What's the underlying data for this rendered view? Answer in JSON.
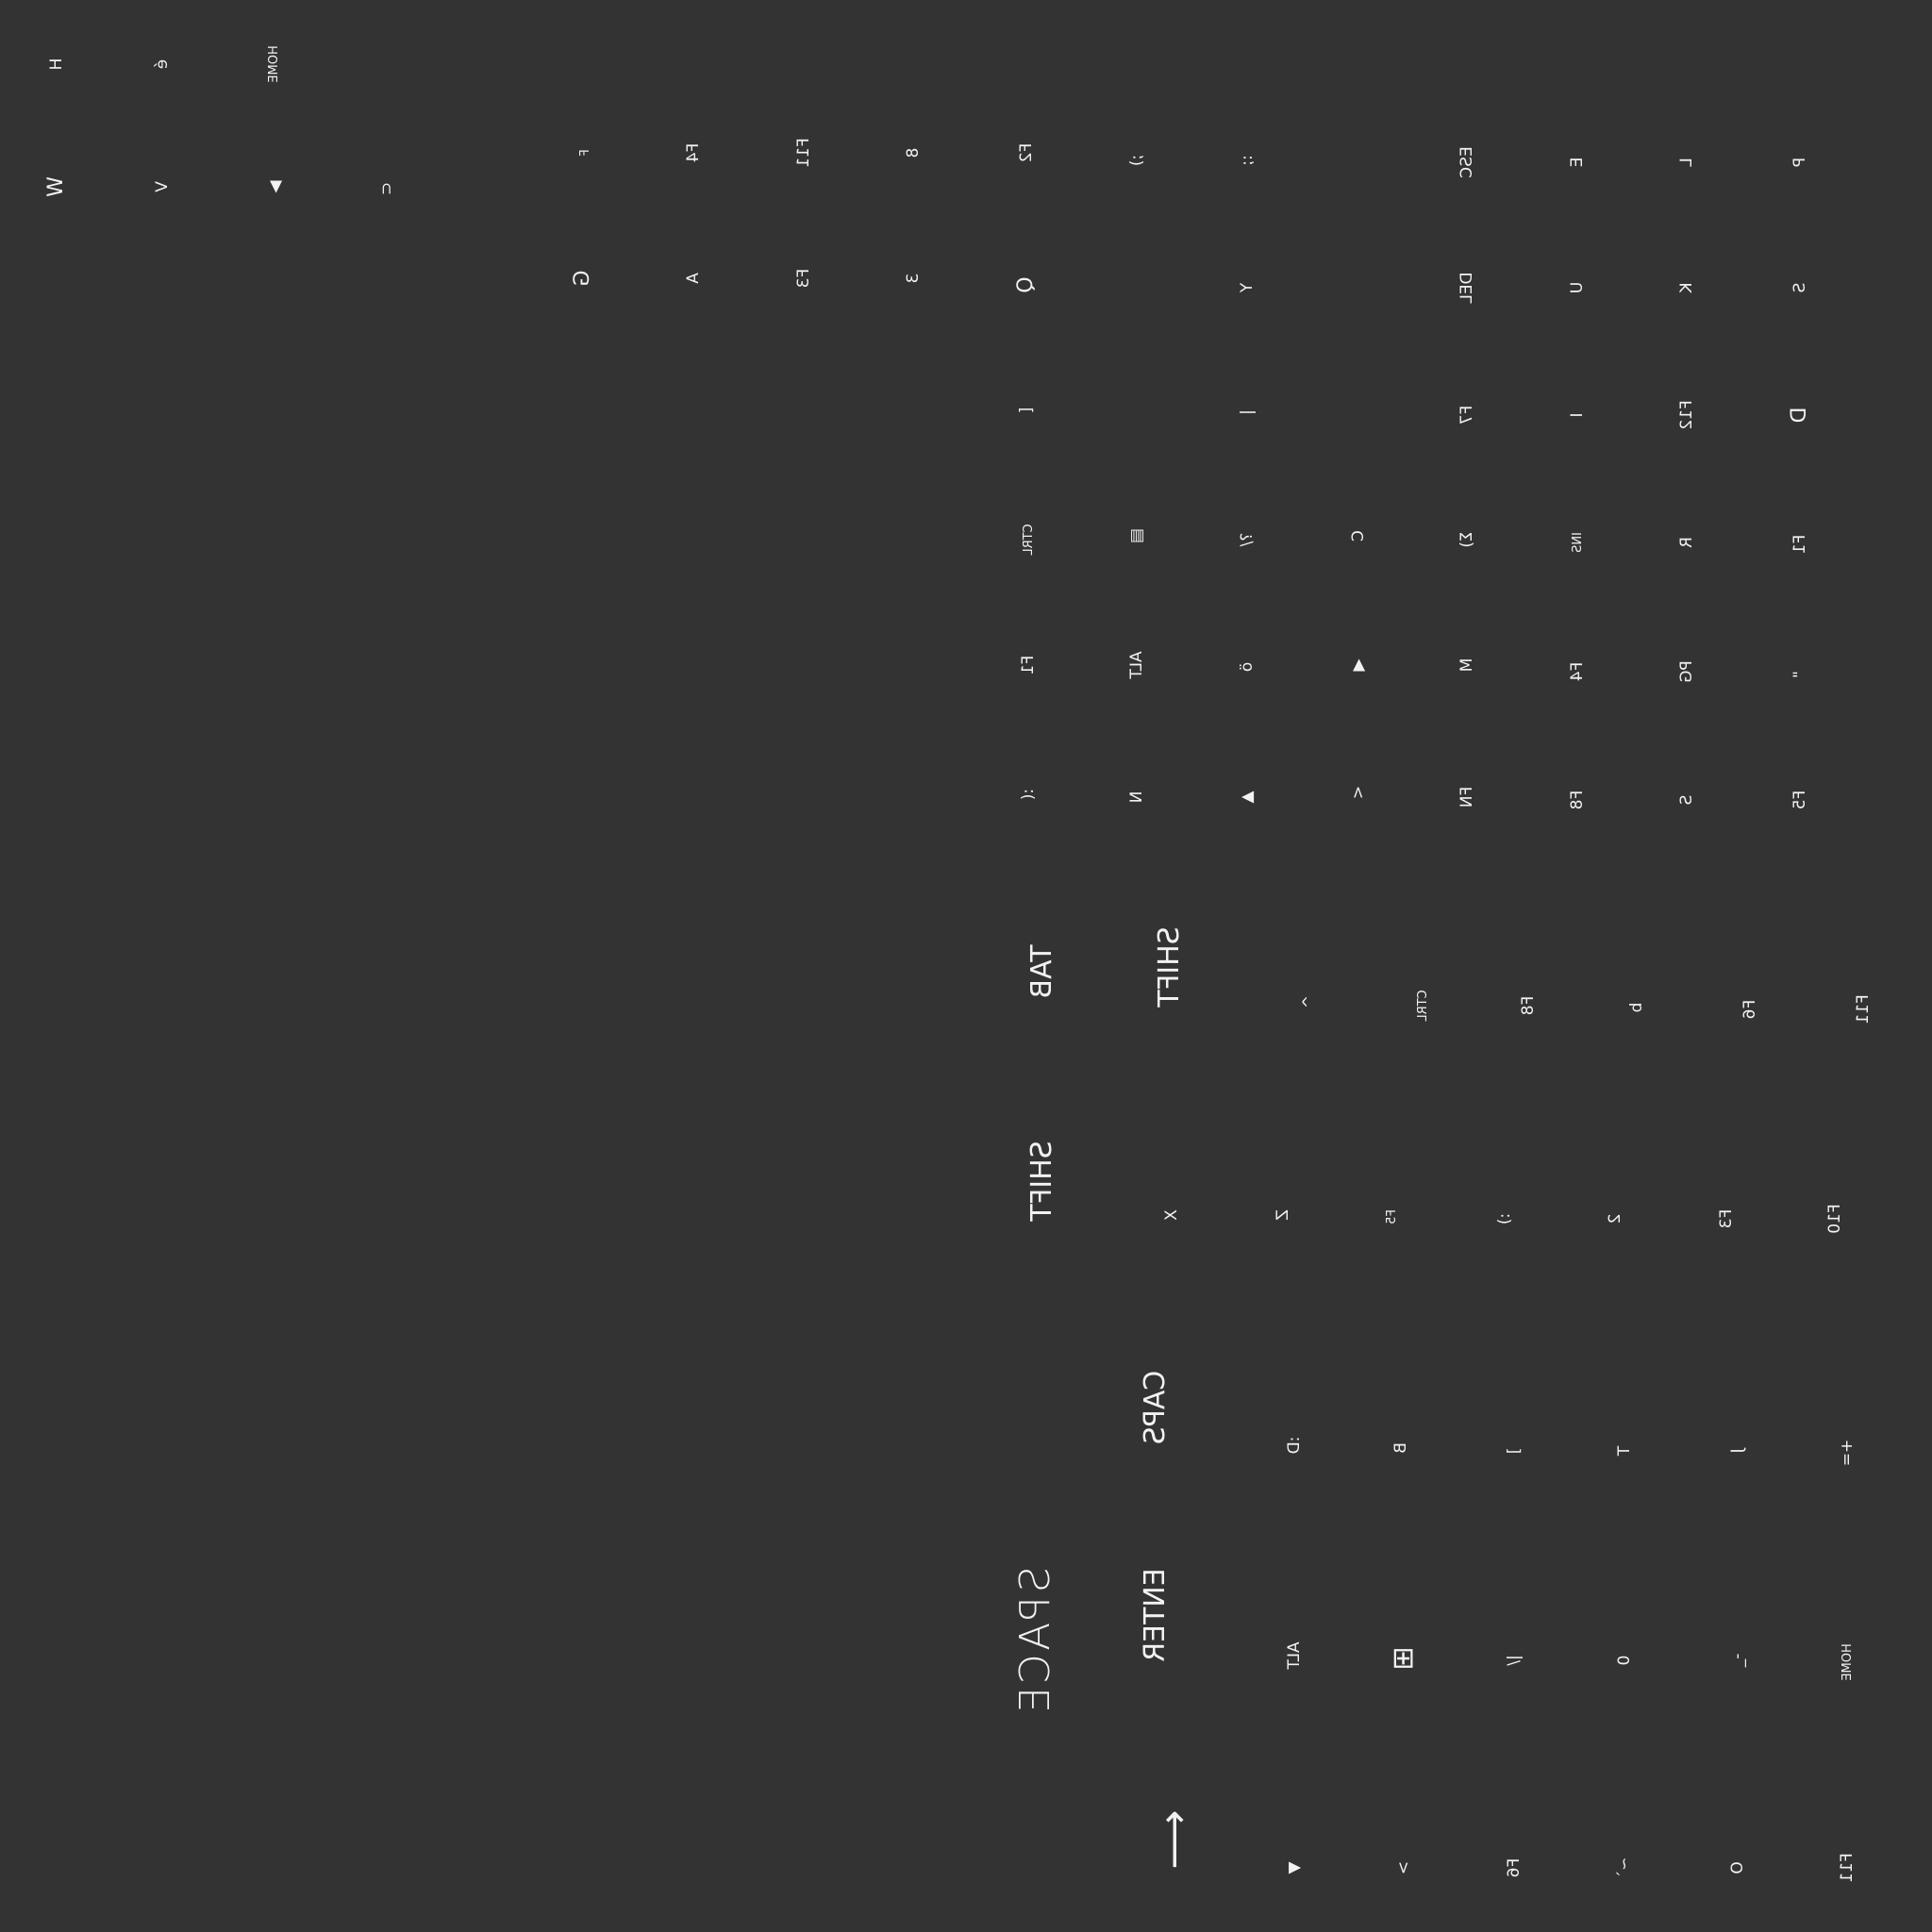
{
  "colors": {
    "background": "#333333",
    "key_text": "#f2f2f2"
  },
  "keyboard": {
    "top_left_group": [
      {
        "name": "key-h",
        "label": "H"
      },
      {
        "name": "key-e-accent",
        "label": "é"
      },
      {
        "name": "key-home",
        "label": "HOME"
      },
      {
        "name": "key-w",
        "label": "W"
      },
      {
        "name": "key-v",
        "label": "V"
      },
      {
        "name": "key-arrow-right",
        "label": "▶",
        "icon": "arrow-right-icon"
      },
      {
        "name": "key-c-bracket",
        "label": "⊂"
      }
    ],
    "main_rows": [
      {
        "name": "key-f",
        "label": "F"
      },
      {
        "name": "key-f4",
        "label": "F4"
      },
      {
        "name": "key-f11",
        "label": "F11"
      },
      {
        "name": "key-8",
        "label": "8"
      },
      {
        "name": "key-f2",
        "label": "F2"
      },
      {
        "name": "key-semicolon-dot",
        "label": ";)"
      },
      {
        "name": "key-colon-dots",
        "label": ":;"
      },
      {
        "name": "key-esc",
        "label": "ESC"
      },
      {
        "name": "key-e",
        "label": "E"
      },
      {
        "name": "key-l",
        "label": "L"
      },
      {
        "name": "key-p",
        "label": "P"
      },
      {
        "name": "key-g",
        "label": "G"
      },
      {
        "name": "key-a",
        "label": "A"
      },
      {
        "name": "key-f3",
        "label": "F3"
      },
      {
        "name": "key-3",
        "label": "3"
      },
      {
        "name": "key-q",
        "label": "Q"
      },
      {
        "name": "key-y",
        "label": "Y"
      },
      {
        "name": "key-del",
        "label": "DEL"
      },
      {
        "name": "key-u",
        "label": "U"
      },
      {
        "name": "key-k",
        "label": "K"
      },
      {
        "name": "key-s",
        "label": "S"
      },
      {
        "name": "key-bracket-open",
        "label": "["
      },
      {
        "name": "key-pipe",
        "label": "|"
      },
      {
        "name": "key-f7",
        "label": "F7"
      },
      {
        "name": "key-i",
        "label": "I"
      },
      {
        "name": "key-f12",
        "label": "F12"
      },
      {
        "name": "key-d",
        "label": "D"
      },
      {
        "name": "key-ctrl",
        "label": "CTRL"
      },
      {
        "name": "key-menu",
        "label": "▤",
        "icon": "menu-icon"
      },
      {
        "name": "key-question-mark",
        "label": "?/"
      },
      {
        "name": "key-c",
        "label": "C"
      },
      {
        "name": "key-sigma",
        "label": "Σ)"
      },
      {
        "name": "key-ins",
        "label": "INS"
      },
      {
        "name": "key-r",
        "label": "R"
      },
      {
        "name": "key-f1",
        "label": "F1"
      },
      {
        "name": "key-f1-alt",
        "label": "F1"
      },
      {
        "name": "key-alt",
        "label": "ALT"
      },
      {
        "name": "key-o-umlaut",
        "label": "ö"
      },
      {
        "name": "key-arrow-left",
        "label": "◀",
        "icon": "arrow-left-icon"
      },
      {
        "name": "key-m",
        "label": "M"
      },
      {
        "name": "key-f4-alt",
        "label": "F4"
      },
      {
        "name": "key-pg",
        "label": "PG"
      },
      {
        "name": "key-quote",
        "label": "\""
      },
      {
        "name": "key-colon-bracket",
        "label": ":("
      },
      {
        "name": "key-n",
        "label": "N"
      },
      {
        "name": "key-arrow-up",
        "label": "▲",
        "icon": "arrow-up-icon"
      },
      {
        "name": "key-less-than",
        "label": "<"
      },
      {
        "name": "key-fn",
        "label": "FN"
      },
      {
        "name": "key-f8",
        "label": "F8"
      },
      {
        "name": "key-s-small",
        "label": "S"
      },
      {
        "name": "key-f5",
        "label": "F5"
      }
    ],
    "wide_keys": [
      {
        "name": "key-tab",
        "label": "TAB"
      },
      {
        "name": "key-shift-left",
        "label": "SHIFT"
      },
      {
        "name": "key-shift-right",
        "label": "SHIFT"
      },
      {
        "name": "key-caps",
        "label": "CAPS"
      },
      {
        "name": "key-space",
        "label": "SPACE"
      },
      {
        "name": "key-enter",
        "label": "ENTER"
      }
    ],
    "right_rows": [
      {
        "name": "key-caret",
        "label": "^"
      },
      {
        "name": "key-ctrl-2",
        "label": "CTRL"
      },
      {
        "name": "key-f8-2",
        "label": "F8"
      },
      {
        "name": "key-b-small",
        "label": "b"
      },
      {
        "name": "key-f6",
        "label": "F6"
      },
      {
        "name": "key-f11-2",
        "label": "F11"
      },
      {
        "name": "key-x",
        "label": "X"
      },
      {
        "name": "key-z",
        "label": "Z"
      },
      {
        "name": "key-f5-2",
        "label": "F5"
      },
      {
        "name": "key-smile",
        "label": ":)"
      },
      {
        "name": "key-2",
        "label": "2"
      },
      {
        "name": "key-f3-2",
        "label": "F3"
      },
      {
        "name": "key-f10",
        "label": "F10"
      },
      {
        "name": "key-d-colon",
        "label": ":D"
      },
      {
        "name": "key-b",
        "label": "B"
      },
      {
        "name": "key-bracket-close",
        "label": "]"
      },
      {
        "name": "key-t",
        "label": "T"
      },
      {
        "name": "key-j",
        "label": "J"
      },
      {
        "name": "key-plus-equal",
        "label": "+="
      },
      {
        "name": "key-alt-2",
        "label": "ALT"
      },
      {
        "name": "key-windows",
        "label": "⊞",
        "icon": "windows-icon"
      },
      {
        "name": "key-slash-pipe",
        "label": "|/"
      },
      {
        "name": "key-0",
        "label": "0"
      },
      {
        "name": "key-minus",
        "label": "-_"
      },
      {
        "name": "key-home-2",
        "label": "HOME"
      },
      {
        "name": "key-arrow-down",
        "label": "▼",
        "icon": "arrow-down-icon"
      },
      {
        "name": "key-greater-than",
        "label": ">"
      },
      {
        "name": "key-f6-2",
        "label": "F6"
      },
      {
        "name": "key-tilde",
        "label": "~`"
      },
      {
        "name": "key-o",
        "label": "O"
      },
      {
        "name": "key-f11-3",
        "label": "F11"
      },
      {
        "name": "key-backspace",
        "label": "⟵",
        "icon": "backspace-arrow-icon"
      }
    ]
  }
}
